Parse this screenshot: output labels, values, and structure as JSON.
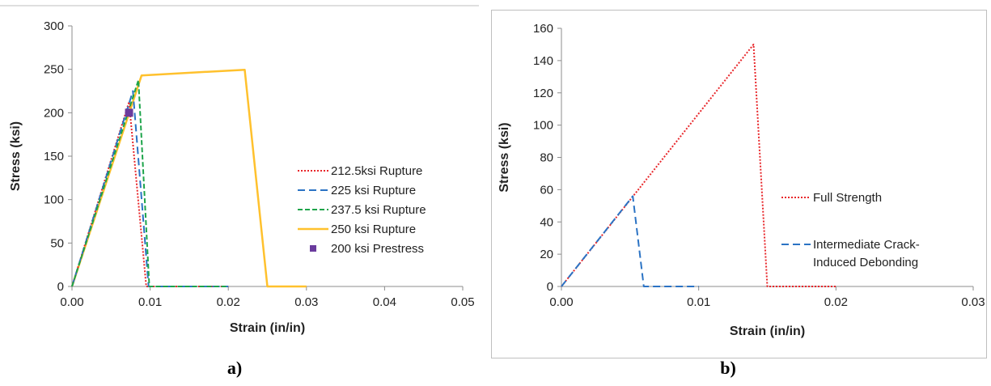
{
  "panel_labels": [
    "a)",
    "b)"
  ],
  "chart_data": [
    {
      "type": "line",
      "xlabel": "Strain (in/in)",
      "ylabel": "Stress (ksi)",
      "xlim": [
        0,
        0.05
      ],
      "ylim": [
        0,
        300
      ],
      "xticks": [
        "0.00",
        "0.01",
        "0.02",
        "0.03",
        "0.04",
        "0.05"
      ],
      "yticks": [
        "0",
        "50",
        "100",
        "150",
        "200",
        "250",
        "300"
      ],
      "grid": false,
      "legend_position": "right",
      "series": [
        {
          "name": "212.5ksi Rupture",
          "color": "#e8272b",
          "style": "dotted",
          "x": [
            0,
            0.0073,
            0.0095,
            0.01,
            0.02
          ],
          "y": [
            0,
            212.5,
            0,
            0,
            0
          ]
        },
        {
          "name": "225 ksi Rupture",
          "color": "#2b73c4",
          "style": "dashed",
          "x": [
            0,
            0.0078,
            0.0098,
            0.01,
            0.02
          ],
          "y": [
            0,
            225,
            0,
            0,
            0
          ]
        },
        {
          "name": "237.5 ksi Rupture",
          "color": "#1da44a",
          "style": "dashdot",
          "x": [
            0,
            0.0085,
            0.0099,
            0.01,
            0.02
          ],
          "y": [
            0,
            237.5,
            0,
            0,
            0
          ]
        },
        {
          "name": "250 ksi Rupture",
          "color": "#ffc12d",
          "style": "solid",
          "x": [
            0,
            0.0089,
            0.0221,
            0.025,
            0.03
          ],
          "y": [
            0,
            243,
            249.5,
            0,
            0
          ]
        },
        {
          "name": "200 ksi Prestress",
          "color": "#6a3b9d",
          "style": "marker",
          "x": [
            0.0073
          ],
          "y": [
            200
          ]
        }
      ]
    },
    {
      "type": "line",
      "xlabel": "Strain (in/in)",
      "ylabel": "Stress (ksi)",
      "xlim": [
        0,
        0.03
      ],
      "ylim": [
        0,
        160
      ],
      "xticks": [
        "0.00",
        "0.01",
        "0.02",
        "0.03"
      ],
      "yticks": [
        "0",
        "20",
        "40",
        "60",
        "80",
        "100",
        "120",
        "140",
        "160"
      ],
      "grid": false,
      "legend_position": "right",
      "series": [
        {
          "name": "Full Strength",
          "color": "#e8272b",
          "style": "dotted",
          "x": [
            0,
            0.014,
            0.015,
            0.02
          ],
          "y": [
            0,
            150,
            0,
            0
          ]
        },
        {
          "name": "Intermediate Crack-\nInduced Debonding",
          "color": "#2b73c4",
          "style": "dashed",
          "x": [
            0,
            0.0052,
            0.006,
            0.01
          ],
          "y": [
            0,
            56,
            0,
            0
          ]
        }
      ]
    }
  ]
}
